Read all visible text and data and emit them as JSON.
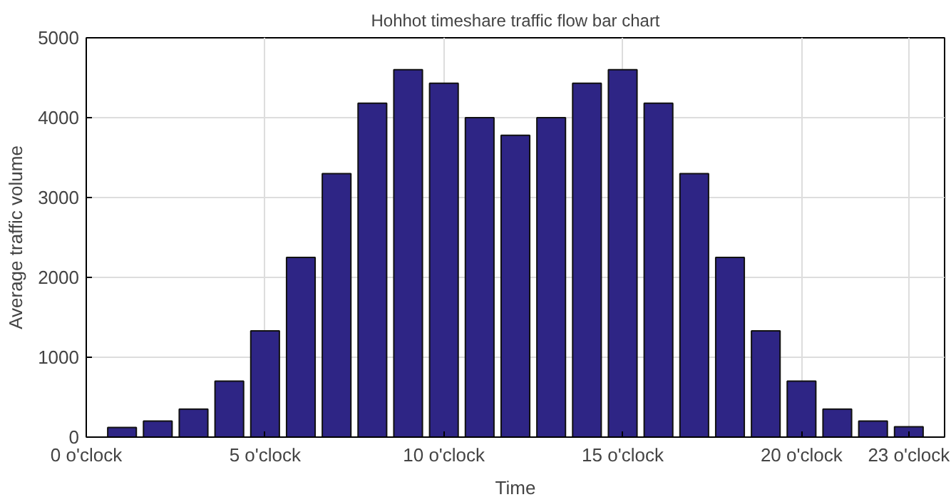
{
  "chart_data": {
    "type": "bar",
    "title": "Hohhot timeshare traffic flow bar chart",
    "xlabel": "Time",
    "ylabel": "Average traffic volume",
    "x": [
      1,
      2,
      3,
      4,
      5,
      6,
      7,
      8,
      9,
      10,
      11,
      12,
      13,
      14,
      15,
      16,
      17,
      18,
      19,
      20,
      21,
      22,
      23
    ],
    "values": [
      120,
      200,
      350,
      700,
      1330,
      2250,
      3300,
      4180,
      4600,
      4430,
      4000,
      3780,
      4000,
      4430,
      4600,
      4180,
      3300,
      2250,
      1330,
      700,
      350,
      200,
      130
    ],
    "color": "#2e2585",
    "xlim": [
      0,
      24
    ],
    "xticks": [
      {
        "value": 0,
        "label": "0 o'clock"
      },
      {
        "value": 5,
        "label": "5 o'clock"
      },
      {
        "value": 10,
        "label": "10 o'clock"
      },
      {
        "value": 15,
        "label": "15 o'clock"
      },
      {
        "value": 20,
        "label": "20 o'clock"
      },
      {
        "value": 23,
        "label": "23 o'clock"
      }
    ],
    "ylim": [
      0,
      5000
    ],
    "yticks": [
      0,
      1000,
      2000,
      3000,
      4000,
      5000
    ],
    "grid": true
  }
}
